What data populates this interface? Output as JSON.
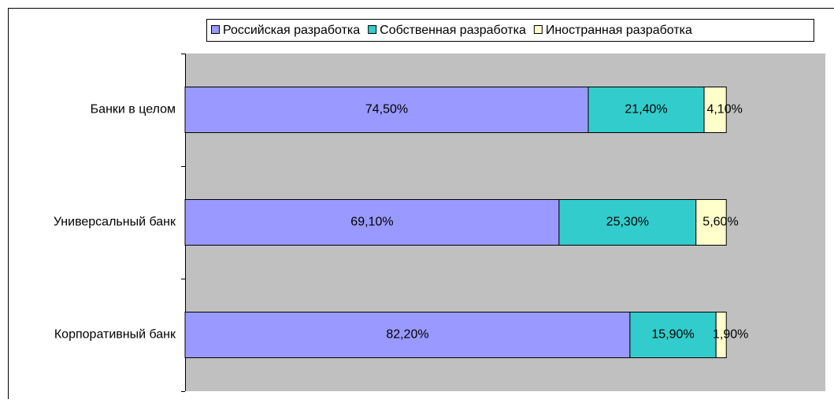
{
  "chart_data": {
    "type": "stacked_bar_horizontal",
    "categories": [
      "Банки в целом",
      "Универсальный банк",
      "Корпоративный банк"
    ],
    "series": [
      {
        "name": "Российская разработка",
        "color": "#9999ff",
        "values": [
          74.5,
          69.1,
          82.2
        ],
        "value_labels": [
          "74,50%",
          "69,10%",
          "82,20%"
        ]
      },
      {
        "name": "Собственная разработка",
        "color": "#33cccc",
        "values": [
          21.4,
          25.3,
          15.9
        ],
        "value_labels": [
          "21,40%",
          "25,30%",
          "15,90%"
        ]
      },
      {
        "name": "Иностранная разработка",
        "color": "#ffffcc",
        "values": [
          4.1,
          5.6,
          1.9
        ],
        "value_labels": [
          "4,10%",
          "5,60%",
          "1,90%"
        ]
      }
    ],
    "xlim": [
      0,
      118.3
    ],
    "legend": "top"
  }
}
